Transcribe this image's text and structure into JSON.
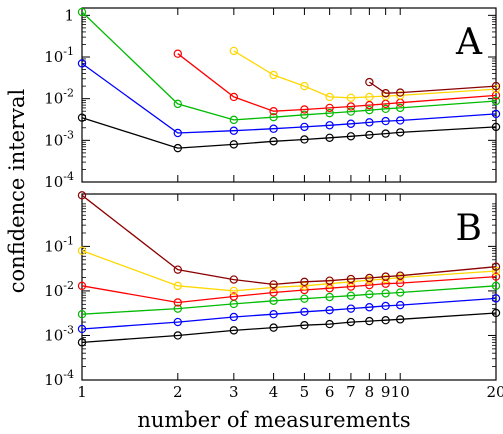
{
  "chart_data": [
    {
      "type": "line",
      "panel_label": "A",
      "xscale": "log",
      "yscale": "log",
      "xlim": [
        1,
        20
      ],
      "ylim": [
        0.0001,
        1.5
      ],
      "xticks": [
        1,
        2,
        3,
        4,
        5,
        6,
        7,
        8,
        9,
        10,
        20
      ],
      "xtick_labels": [
        "1",
        "2",
        "3",
        "4",
        "5",
        "6",
        "7",
        "8",
        "9",
        "10",
        "20"
      ],
      "show_x_tick_labels": false,
      "yticks": [
        0.0001,
        0.001,
        0.01,
        0.1,
        1
      ],
      "ytick_labels": [
        {
          "base": "10",
          "exp": "-4"
        },
        {
          "base": "10",
          "exp": "-3"
        },
        {
          "base": "10",
          "exp": "-2"
        },
        {
          "base": "10",
          "exp": "-1"
        },
        {
          "base": "1",
          "exp": ""
        }
      ],
      "grid": false,
      "series": [
        {
          "color": "#000000",
          "x": [
            1,
            2,
            3,
            4,
            5,
            6,
            7,
            8,
            9,
            10,
            20
          ],
          "y": [
            0.0035,
            0.00065,
            0.0008,
            0.00095,
            0.00105,
            0.00115,
            0.00125,
            0.00135,
            0.00145,
            0.00155,
            0.0021
          ]
        },
        {
          "color": "#0000ff",
          "x": [
            1,
            2,
            3,
            4,
            5,
            6,
            7,
            8,
            9,
            10,
            20
          ],
          "y": [
            0.07,
            0.0015,
            0.0017,
            0.0019,
            0.0021,
            0.0023,
            0.0025,
            0.0027,
            0.0029,
            0.003,
            0.0043
          ]
        },
        {
          "color": "#00bb00",
          "x": [
            1,
            2,
            3,
            4,
            5,
            6,
            7,
            8,
            9,
            10,
            20
          ],
          "y": [
            1.2,
            0.0075,
            0.0031,
            0.0036,
            0.0041,
            0.0045,
            0.0049,
            0.0053,
            0.0057,
            0.006,
            0.0088
          ]
        },
        {
          "color": "#ff0000",
          "x": [
            2,
            3,
            4,
            5,
            6,
            7,
            8,
            9,
            10,
            20
          ],
          "y": [
            0.12,
            0.011,
            0.005,
            0.0055,
            0.006,
            0.0065,
            0.007,
            0.0075,
            0.008,
            0.012
          ]
        },
        {
          "color": "#ffd700",
          "x": [
            3,
            4,
            5,
            6,
            7,
            8,
            9,
            10,
            20
          ],
          "y": [
            0.14,
            0.037,
            0.02,
            0.011,
            0.0105,
            0.011,
            0.0115,
            0.012,
            0.017
          ]
        },
        {
          "color": "#8b0000",
          "x": [
            8,
            9,
            10,
            20
          ],
          "y": [
            0.025,
            0.0135,
            0.014,
            0.02
          ]
        }
      ]
    },
    {
      "type": "line",
      "panel_label": "B",
      "xscale": "log",
      "yscale": "log",
      "xlim": [
        1,
        20
      ],
      "ylim": [
        0.0001,
        1.5
      ],
      "xticks": [
        1,
        2,
        3,
        4,
        5,
        6,
        7,
        8,
        9,
        10,
        20
      ],
      "xtick_labels": [
        "1",
        "2",
        "3",
        "4",
        "5",
        "6",
        "7",
        "8",
        "9",
        "10",
        "20"
      ],
      "show_x_tick_labels": true,
      "yticks": [
        0.0001,
        0.001,
        0.01,
        0.1
      ],
      "ytick_labels": [
        {
          "base": "10",
          "exp": "-4"
        },
        {
          "base": "10",
          "exp": "-3"
        },
        {
          "base": "10",
          "exp": "-2"
        },
        {
          "base": "10",
          "exp": "-1"
        }
      ],
      "grid": false,
      "series": [
        {
          "color": "#000000",
          "x": [
            1,
            2,
            3,
            4,
            5,
            6,
            7,
            8,
            9,
            10,
            20
          ],
          "y": [
            0.0007,
            0.001,
            0.0013,
            0.0015,
            0.0017,
            0.0018,
            0.002,
            0.0021,
            0.0022,
            0.0023,
            0.0032
          ]
        },
        {
          "color": "#0000ff",
          "x": [
            1,
            2,
            3,
            4,
            5,
            6,
            7,
            8,
            9,
            10,
            20
          ],
          "y": [
            0.0014,
            0.002,
            0.0026,
            0.003,
            0.0034,
            0.0037,
            0.004,
            0.0043,
            0.0046,
            0.0048,
            0.0068
          ]
        },
        {
          "color": "#00bb00",
          "x": [
            1,
            2,
            3,
            4,
            5,
            6,
            7,
            8,
            9,
            10,
            20
          ],
          "y": [
            0.003,
            0.004,
            0.0051,
            0.006,
            0.0067,
            0.0073,
            0.0078,
            0.0084,
            0.0088,
            0.0092,
            0.013
          ]
        },
        {
          "color": "#ff0000",
          "x": [
            1,
            2,
            3,
            4,
            5,
            6,
            7,
            8,
            9,
            10,
            20
          ],
          "y": [
            0.013,
            0.0055,
            0.0075,
            0.0092,
            0.0105,
            0.0115,
            0.0125,
            0.0135,
            0.0145,
            0.015,
            0.021
          ]
        },
        {
          "color": "#ffd700",
          "x": [
            1,
            2,
            3,
            4,
            5,
            6,
            7,
            8,
            9,
            10,
            20
          ],
          "y": [
            0.08,
            0.013,
            0.01,
            0.012,
            0.013,
            0.0145,
            0.016,
            0.0175,
            0.0185,
            0.02,
            0.028
          ]
        },
        {
          "color": "#8b0000",
          "x": [
            1,
            2,
            3,
            4,
            5,
            6,
            7,
            8,
            9,
            10,
            20
          ],
          "y": [
            1.4,
            0.03,
            0.018,
            0.014,
            0.016,
            0.017,
            0.0185,
            0.0195,
            0.021,
            0.022,
            0.035
          ]
        }
      ]
    }
  ],
  "ylabel": "confidence interval",
  "xlabel": "number of measurements"
}
